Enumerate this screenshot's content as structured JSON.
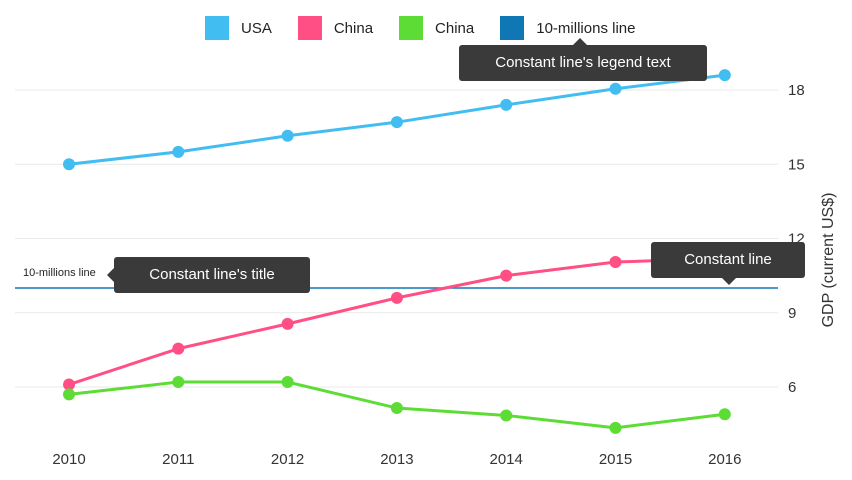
{
  "chart_data": {
    "type": "line",
    "x": [
      "2010",
      "2011",
      "2012",
      "2013",
      "2014",
      "2015",
      "2016"
    ],
    "series": [
      {
        "name": "USA",
        "color": "#42bdf2",
        "values": [
          15.0,
          15.5,
          16.15,
          16.7,
          17.4,
          18.05,
          18.6
        ]
      },
      {
        "name": "China",
        "color": "#ff4f85",
        "values": [
          6.1,
          7.55,
          8.55,
          9.6,
          10.5,
          11.05,
          11.2
        ]
      },
      {
        "name": "China",
        "color": "#5ddc35",
        "values": [
          5.7,
          6.2,
          6.2,
          5.15,
          4.85,
          4.35,
          4.9
        ]
      }
    ],
    "ylabel": "GDP (current US$)",
    "yticks": [
      6,
      9,
      12,
      15,
      18
    ],
    "ylim": [
      3.8,
      19.3
    ],
    "constant_line": {
      "value": 10,
      "label": "10-millions line",
      "legend_text": "10-millions line",
      "color": "#1077b5"
    }
  },
  "legend": [
    {
      "label": "USA",
      "color": "#42bdf2"
    },
    {
      "label": "China",
      "color": "#ff4f85"
    },
    {
      "label": "China",
      "color": "#5ddc35"
    },
    {
      "label": "10-millions line",
      "color": "#1077b5"
    }
  ],
  "tooltips": {
    "legend_text": "Constant line's legend text",
    "title": "Constant line's title",
    "constant_line": "Constant line"
  }
}
